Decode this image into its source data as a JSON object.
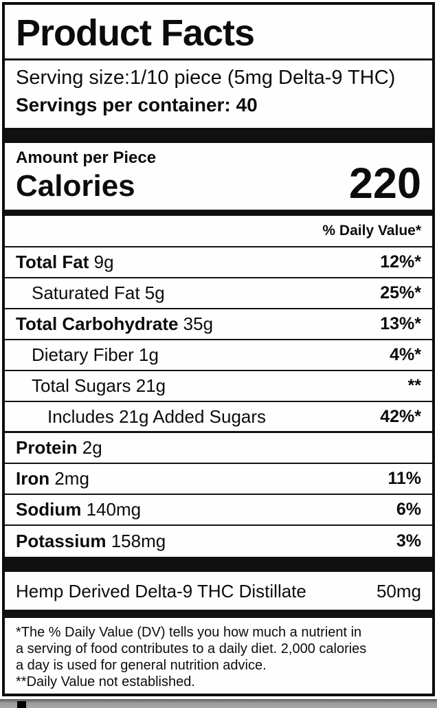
{
  "colors": {
    "ink": "#0c0c0c",
    "paper": "#ffffff",
    "outside_gray": "#9d9d9d",
    "mark_black": "#000000"
  },
  "label": {
    "title": "Product Facts",
    "serving_size": "Serving size:1/10 piece (5mg Delta-9 THC)",
    "servings_per_container": "Servings per container: 40",
    "amount_per_piece": "Amount per Piece",
    "calories_label": "Calories",
    "calories_value": "220",
    "daily_value_header": "% Daily Value*",
    "rows": [
      {
        "name": "Total Fat",
        "amount": "9g",
        "dv": "12%*",
        "bold": true,
        "indent": 0
      },
      {
        "name": "Saturated Fat",
        "amount": "5g",
        "dv": "25%*",
        "bold": false,
        "indent": 1
      },
      {
        "name": "Total Carbohydrate",
        "amount": "35g",
        "dv": "13%*",
        "bold": true,
        "indent": 0
      },
      {
        "name": "Dietary Fiber",
        "amount": "1g",
        "dv": "4%*",
        "bold": false,
        "indent": 1
      },
      {
        "name": "Total Sugars",
        "amount": "21g",
        "dv": "**",
        "bold": false,
        "indent": 1
      },
      {
        "name": "Includes 21g Added Sugars",
        "amount": "",
        "dv": "42%*",
        "bold": false,
        "indent": 2
      },
      {
        "name": "Protein",
        "amount": "2g",
        "dv": "",
        "bold": true,
        "indent": 0
      },
      {
        "name": "Iron",
        "amount": "2mg",
        "dv": "11%",
        "bold": true,
        "indent": 0
      },
      {
        "name": "Sodium",
        "amount": "140mg",
        "dv": "6%",
        "bold": true,
        "indent": 0
      },
      {
        "name": "Potassium",
        "amount": "158mg",
        "dv": "3%",
        "bold": true,
        "indent": 0
      }
    ],
    "supplement_row": {
      "name": "Hemp Derived Delta-9 THC Distillate",
      "value": "50mg"
    },
    "footnote_lines": [
      "*The % Daily Value (DV) tells you how much a nutrient in",
      "a serving of food contributes to a daily diet. 2,000 calories",
      "a day is used for general nutrition advice.",
      "**Daily Value not established."
    ]
  }
}
